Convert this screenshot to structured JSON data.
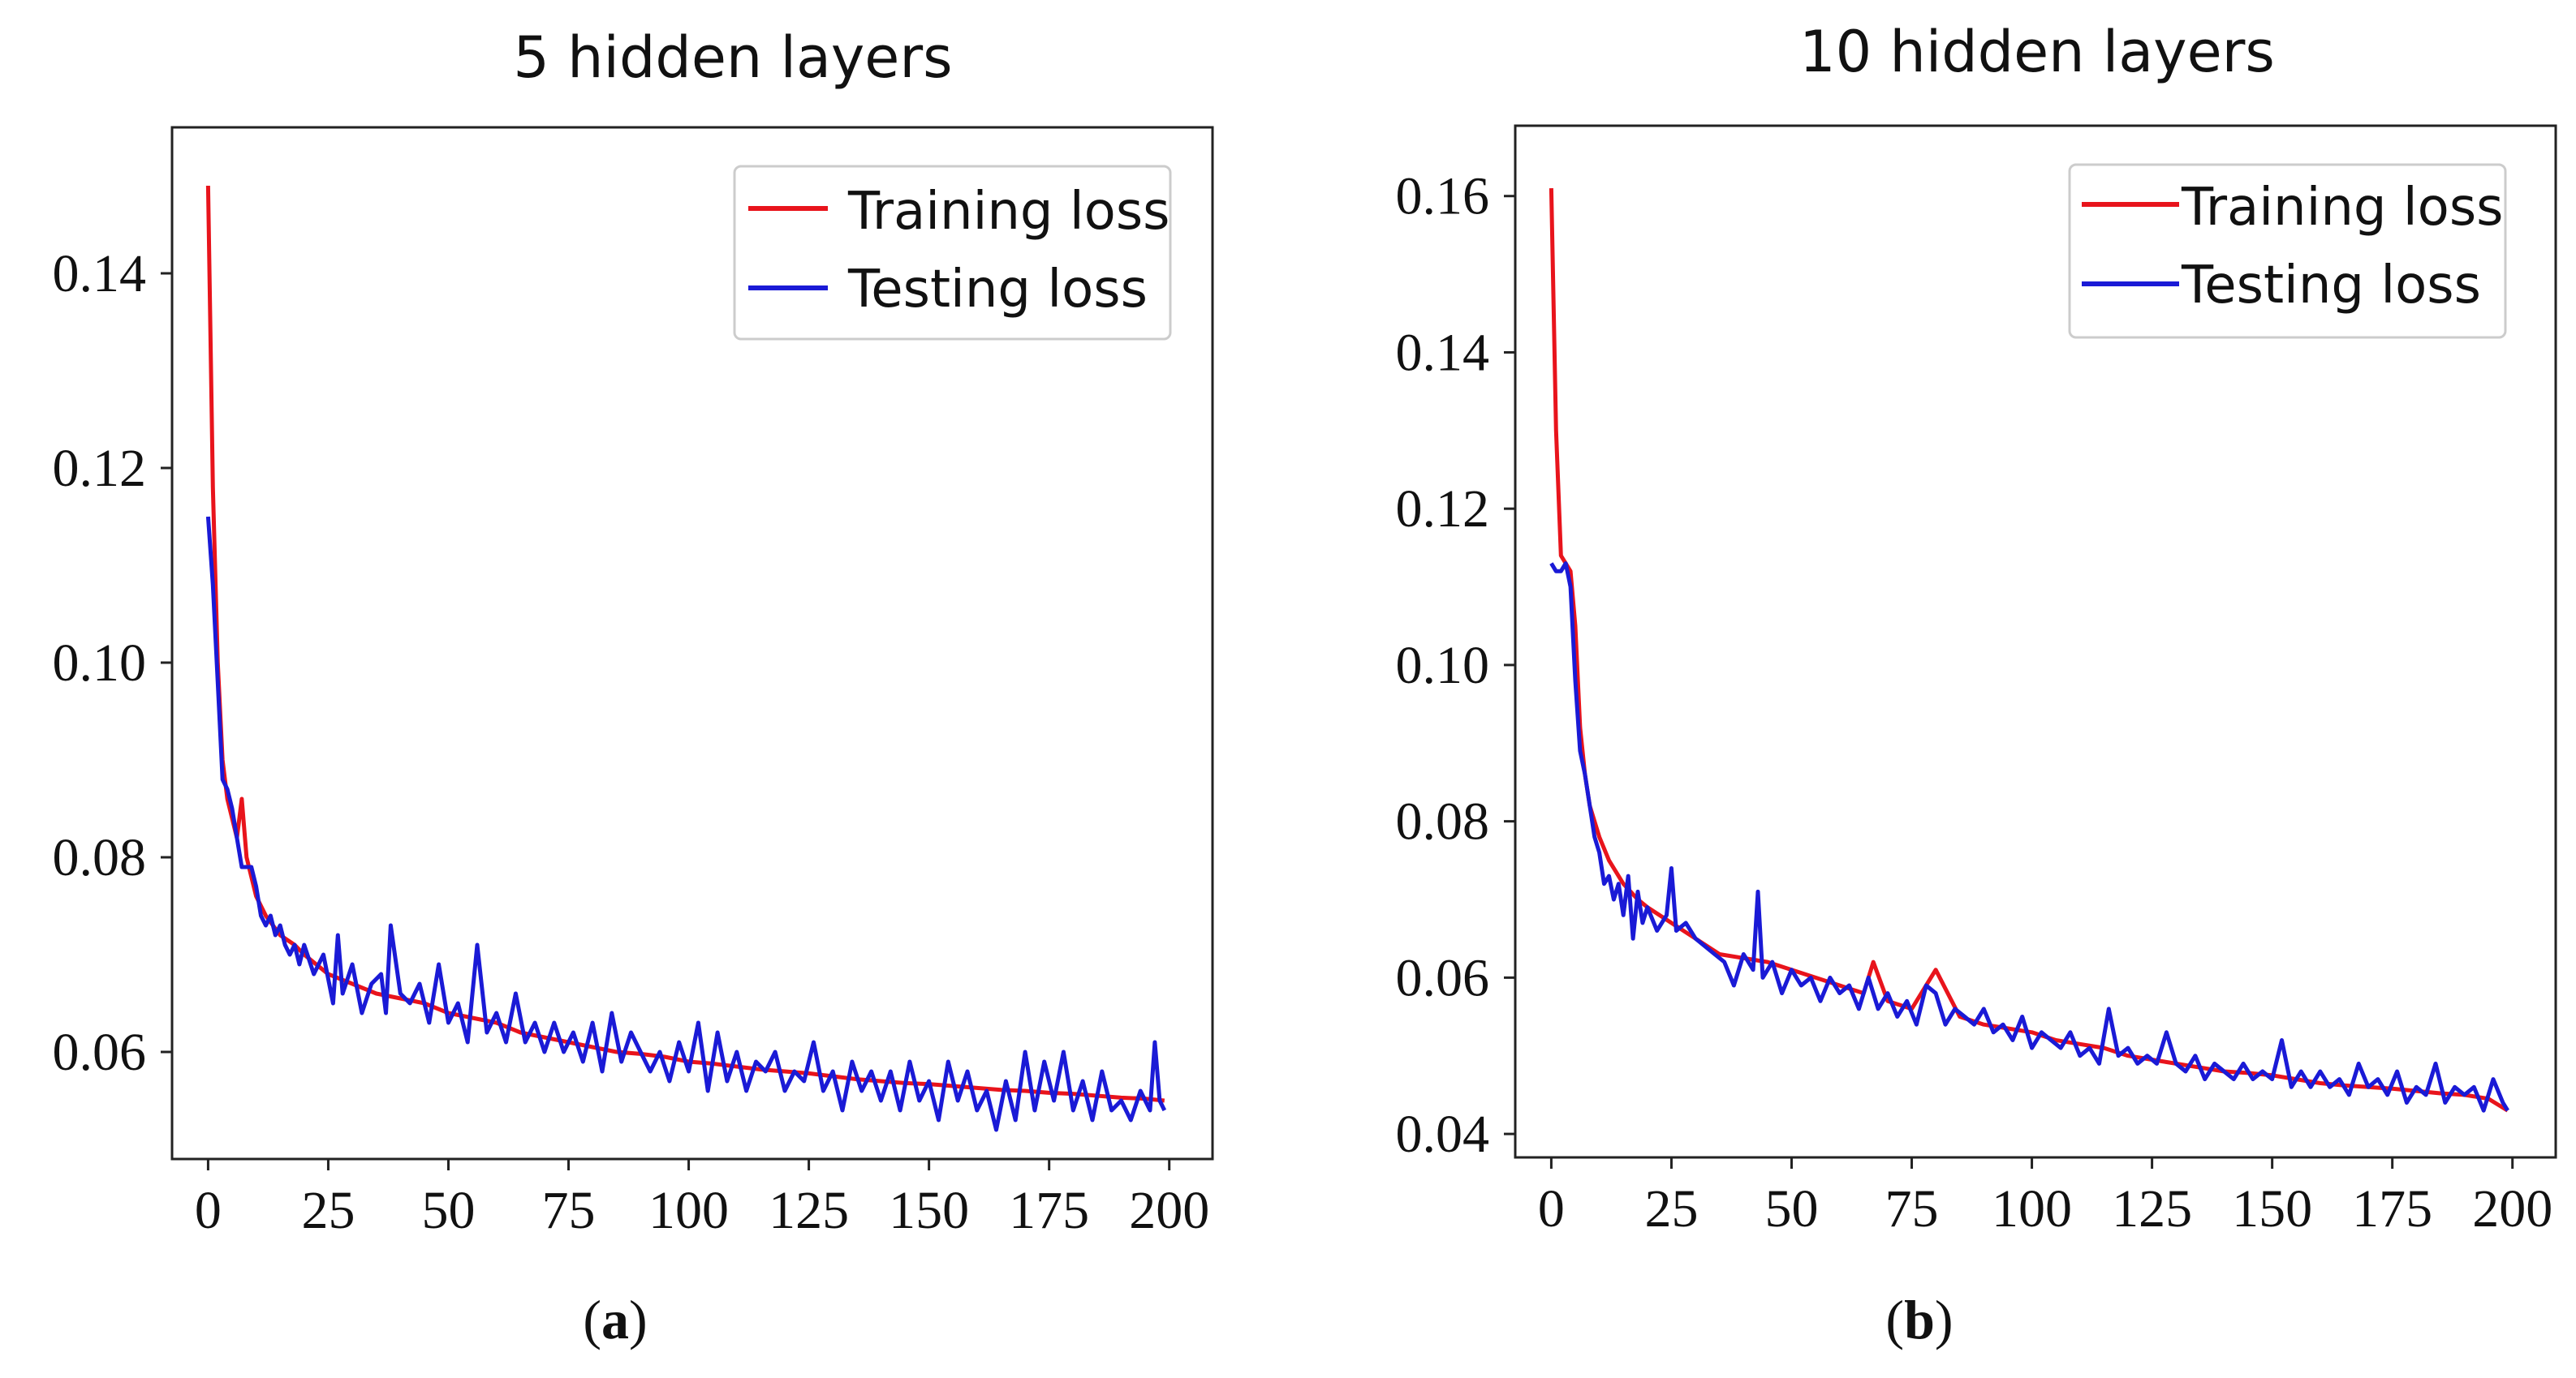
{
  "chart_data": [
    {
      "type": "line",
      "title": "5 hidden layers",
      "panel_label": "a",
      "xlabel": "",
      "ylabel": "",
      "xlim": [
        -7.5,
        209
      ],
      "ylim": [
        0.049,
        0.155
      ],
      "xticks": [
        0,
        25,
        50,
        75,
        100,
        125,
        150,
        175,
        200
      ],
      "yticks": [
        0.06,
        0.08,
        0.1,
        0.12,
        0.14
      ],
      "ytick_labels": [
        "0.06",
        "0.08",
        "0.10",
        "0.12",
        "0.14"
      ],
      "legend_position": "top-right",
      "series": [
        {
          "name": "Training loss",
          "color": "#e8141c",
          "x": [
            0,
            1,
            2,
            3,
            4,
            5,
            6,
            7,
            8,
            10,
            12,
            15,
            18,
            20,
            25,
            30,
            35,
            40,
            45,
            50,
            55,
            60,
            65,
            70,
            75,
            80,
            85,
            90,
            95,
            100,
            105,
            110,
            115,
            120,
            125,
            130,
            135,
            140,
            145,
            150,
            155,
            160,
            165,
            170,
            175,
            180,
            185,
            190,
            195,
            199
          ],
          "y": [
            0.149,
            0.118,
            0.1,
            0.09,
            0.086,
            0.084,
            0.082,
            0.086,
            0.08,
            0.076,
            0.074,
            0.072,
            0.071,
            0.07,
            0.068,
            0.067,
            0.066,
            0.0655,
            0.065,
            0.064,
            0.0635,
            0.063,
            0.062,
            0.0615,
            0.061,
            0.0605,
            0.06,
            0.0598,
            0.0595,
            0.059,
            0.0588,
            0.0585,
            0.0582,
            0.058,
            0.0578,
            0.0575,
            0.0572,
            0.057,
            0.0568,
            0.0567,
            0.0565,
            0.0563,
            0.0561,
            0.056,
            0.0558,
            0.0557,
            0.0555,
            0.0553,
            0.0552,
            0.055
          ]
        },
        {
          "name": "Testing loss",
          "color": "#1a1ad6",
          "x": [
            0,
            1,
            2,
            3,
            4,
            5,
            6,
            7,
            8,
            9,
            10,
            11,
            12,
            13,
            14,
            15,
            16,
            17,
            18,
            19,
            20,
            22,
            24,
            26,
            27,
            28,
            30,
            32,
            34,
            36,
            37,
            38,
            40,
            42,
            44,
            46,
            48,
            50,
            52,
            54,
            56,
            58,
            60,
            62,
            64,
            66,
            68,
            70,
            72,
            74,
            76,
            78,
            80,
            82,
            84,
            86,
            88,
            90,
            92,
            94,
            96,
            98,
            100,
            102,
            104,
            106,
            108,
            110,
            112,
            114,
            116,
            118,
            120,
            122,
            124,
            126,
            128,
            130,
            132,
            134,
            136,
            138,
            140,
            142,
            144,
            146,
            148,
            150,
            152,
            154,
            156,
            158,
            160,
            162,
            164,
            166,
            168,
            170,
            172,
            174,
            176,
            178,
            180,
            182,
            184,
            186,
            188,
            190,
            192,
            194,
            196,
            197,
            198,
            199
          ],
          "y": [
            0.115,
            0.108,
            0.098,
            0.088,
            0.087,
            0.085,
            0.082,
            0.079,
            0.079,
            0.079,
            0.077,
            0.074,
            0.073,
            0.074,
            0.072,
            0.073,
            0.071,
            0.07,
            0.071,
            0.069,
            0.071,
            0.068,
            0.07,
            0.065,
            0.072,
            0.066,
            0.069,
            0.064,
            0.067,
            0.068,
            0.064,
            0.073,
            0.066,
            0.065,
            0.067,
            0.063,
            0.069,
            0.063,
            0.065,
            0.061,
            0.071,
            0.062,
            0.064,
            0.061,
            0.066,
            0.061,
            0.063,
            0.06,
            0.063,
            0.06,
            0.062,
            0.059,
            0.063,
            0.058,
            0.064,
            0.059,
            0.062,
            0.06,
            0.058,
            0.06,
            0.057,
            0.061,
            0.058,
            0.063,
            0.056,
            0.062,
            0.057,
            0.06,
            0.056,
            0.059,
            0.058,
            0.06,
            0.056,
            0.058,
            0.057,
            0.061,
            0.056,
            0.058,
            0.054,
            0.059,
            0.056,
            0.058,
            0.055,
            0.058,
            0.054,
            0.059,
            0.055,
            0.057,
            0.053,
            0.059,
            0.055,
            0.058,
            0.054,
            0.056,
            0.052,
            0.057,
            0.053,
            0.06,
            0.054,
            0.059,
            0.055,
            0.06,
            0.054,
            0.057,
            0.053,
            0.058,
            0.054,
            0.055,
            0.053,
            0.056,
            0.054,
            0.061,
            0.055,
            0.054
          ]
        }
      ]
    },
    {
      "type": "line",
      "title": "10 hidden layers",
      "panel_label": "b",
      "xlabel": "",
      "ylabel": "",
      "xlim": [
        -7.5,
        209
      ],
      "ylim": [
        0.037,
        0.169
      ],
      "xticks": [
        0,
        25,
        50,
        75,
        100,
        125,
        150,
        175,
        200
      ],
      "yticks": [
        0.04,
        0.06,
        0.08,
        0.1,
        0.12,
        0.14,
        0.16
      ],
      "ytick_labels": [
        "0.04",
        "0.06",
        "0.08",
        "0.10",
        "0.12",
        "0.14",
        "0.16"
      ],
      "legend_position": "top-right",
      "series": [
        {
          "name": "Training loss",
          "color": "#e8141c",
          "x": [
            0,
            1,
            2,
            3,
            4,
            5,
            6,
            7,
            8,
            10,
            12,
            15,
            18,
            20,
            25,
            30,
            35,
            40,
            45,
            50,
            55,
            60,
            65,
            67,
            70,
            75,
            80,
            85,
            90,
            95,
            100,
            105,
            110,
            115,
            120,
            125,
            130,
            135,
            140,
            145,
            150,
            155,
            160,
            165,
            170,
            175,
            180,
            185,
            190,
            195,
            199
          ],
          "y": [
            0.161,
            0.13,
            0.114,
            0.113,
            0.112,
            0.105,
            0.092,
            0.086,
            0.082,
            0.078,
            0.075,
            0.072,
            0.07,
            0.069,
            0.067,
            0.065,
            0.063,
            0.0625,
            0.062,
            0.061,
            0.06,
            0.059,
            0.058,
            0.062,
            0.057,
            0.056,
            0.061,
            0.055,
            0.054,
            0.0535,
            0.053,
            0.052,
            0.0515,
            0.051,
            0.05,
            0.0495,
            0.049,
            0.0485,
            0.048,
            0.0478,
            0.0475,
            0.047,
            0.0465,
            0.0462,
            0.046,
            0.0458,
            0.0455,
            0.0452,
            0.045,
            0.0445,
            0.043
          ]
        },
        {
          "name": "Testing loss",
          "color": "#1a1ad6",
          "x": [
            0,
            1,
            2,
            3,
            4,
            5,
            6,
            7,
            8,
            9,
            10,
            11,
            12,
            13,
            14,
            15,
            16,
            17,
            18,
            19,
            20,
            22,
            24,
            25,
            26,
            28,
            30,
            32,
            34,
            36,
            38,
            40,
            42,
            43,
            44,
            46,
            48,
            50,
            52,
            54,
            56,
            58,
            60,
            62,
            64,
            66,
            68,
            70,
            72,
            74,
            76,
            78,
            80,
            82,
            84,
            86,
            88,
            90,
            92,
            94,
            96,
            98,
            100,
            102,
            104,
            106,
            108,
            110,
            112,
            114,
            116,
            118,
            120,
            122,
            124,
            126,
            128,
            130,
            132,
            134,
            136,
            138,
            140,
            142,
            144,
            146,
            148,
            150,
            152,
            154,
            156,
            158,
            160,
            162,
            164,
            166,
            168,
            170,
            172,
            174,
            176,
            178,
            180,
            182,
            184,
            186,
            188,
            190,
            192,
            194,
            196,
            198,
            199
          ],
          "y": [
            0.113,
            0.112,
            0.112,
            0.113,
            0.11,
            0.098,
            0.089,
            0.086,
            0.082,
            0.078,
            0.076,
            0.072,
            0.073,
            0.07,
            0.072,
            0.068,
            0.073,
            0.065,
            0.071,
            0.067,
            0.069,
            0.066,
            0.068,
            0.074,
            0.066,
            0.067,
            0.065,
            0.064,
            0.063,
            0.062,
            0.059,
            0.063,
            0.061,
            0.071,
            0.06,
            0.062,
            0.058,
            0.061,
            0.059,
            0.06,
            0.057,
            0.06,
            0.058,
            0.059,
            0.056,
            0.06,
            0.056,
            0.058,
            0.055,
            0.057,
            0.054,
            0.059,
            0.058,
            0.054,
            0.056,
            0.055,
            0.054,
            0.056,
            0.053,
            0.054,
            0.052,
            0.055,
            0.051,
            0.053,
            0.052,
            0.051,
            0.053,
            0.05,
            0.051,
            0.049,
            0.056,
            0.05,
            0.051,
            0.049,
            0.05,
            0.049,
            0.053,
            0.049,
            0.048,
            0.05,
            0.047,
            0.049,
            0.048,
            0.047,
            0.049,
            0.047,
            0.048,
            0.047,
            0.052,
            0.046,
            0.048,
            0.046,
            0.048,
            0.046,
            0.047,
            0.045,
            0.049,
            0.046,
            0.047,
            0.045,
            0.048,
            0.044,
            0.046,
            0.045,
            0.049,
            0.044,
            0.046,
            0.045,
            0.046,
            0.043,
            0.047,
            0.044,
            0.043
          ]
        }
      ]
    }
  ]
}
